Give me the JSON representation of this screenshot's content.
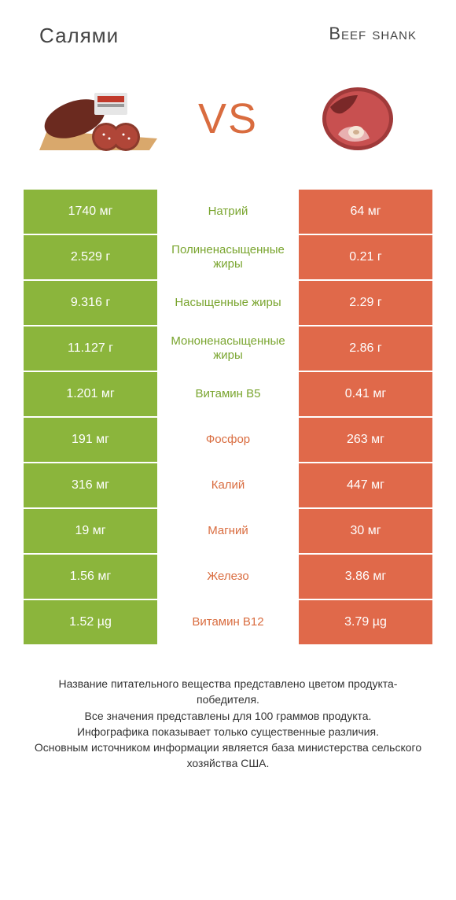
{
  "colors": {
    "green": "#8bb53c",
    "orange": "#e0694a",
    "green_text": "#7aa52f",
    "orange_text": "#d96c3f",
    "white": "#ffffff"
  },
  "header": {
    "left": "Салями",
    "right": "Beef shank",
    "vs": "VS"
  },
  "rows": [
    {
      "left": "1740 мг",
      "mid": "Натрий",
      "right": "64 мг",
      "winner": "left"
    },
    {
      "left": "2.529 г",
      "mid": "Полиненасыщенные жиры",
      "right": "0.21 г",
      "winner": "left"
    },
    {
      "left": "9.316 г",
      "mid": "Насыщенные жиры",
      "right": "2.29 г",
      "winner": "left"
    },
    {
      "left": "11.127 г",
      "mid": "Мононенасыщенные жиры",
      "right": "2.86 г",
      "winner": "left"
    },
    {
      "left": "1.201 мг",
      "mid": "Витамин B5",
      "right": "0.41 мг",
      "winner": "left"
    },
    {
      "left": "191 мг",
      "mid": "Фосфор",
      "right": "263 мг",
      "winner": "right"
    },
    {
      "left": "316 мг",
      "mid": "Калий",
      "right": "447 мг",
      "winner": "right"
    },
    {
      "left": "19 мг",
      "mid": "Магний",
      "right": "30 мг",
      "winner": "right"
    },
    {
      "left": "1.56 мг",
      "mid": "Железо",
      "right": "3.86 мг",
      "winner": "right"
    },
    {
      "left": "1.52 µg",
      "mid": "Витамин B12",
      "right": "3.79 µg",
      "winner": "right"
    }
  ],
  "footer": [
    "Название питательного вещества представлено цветом продукта-победителя.",
    "Все значения представлены для 100 граммов продукта.",
    "Инфографика показывает только существенные различия.",
    "Основным источником информации является база министерства сельского хозяйства США."
  ]
}
